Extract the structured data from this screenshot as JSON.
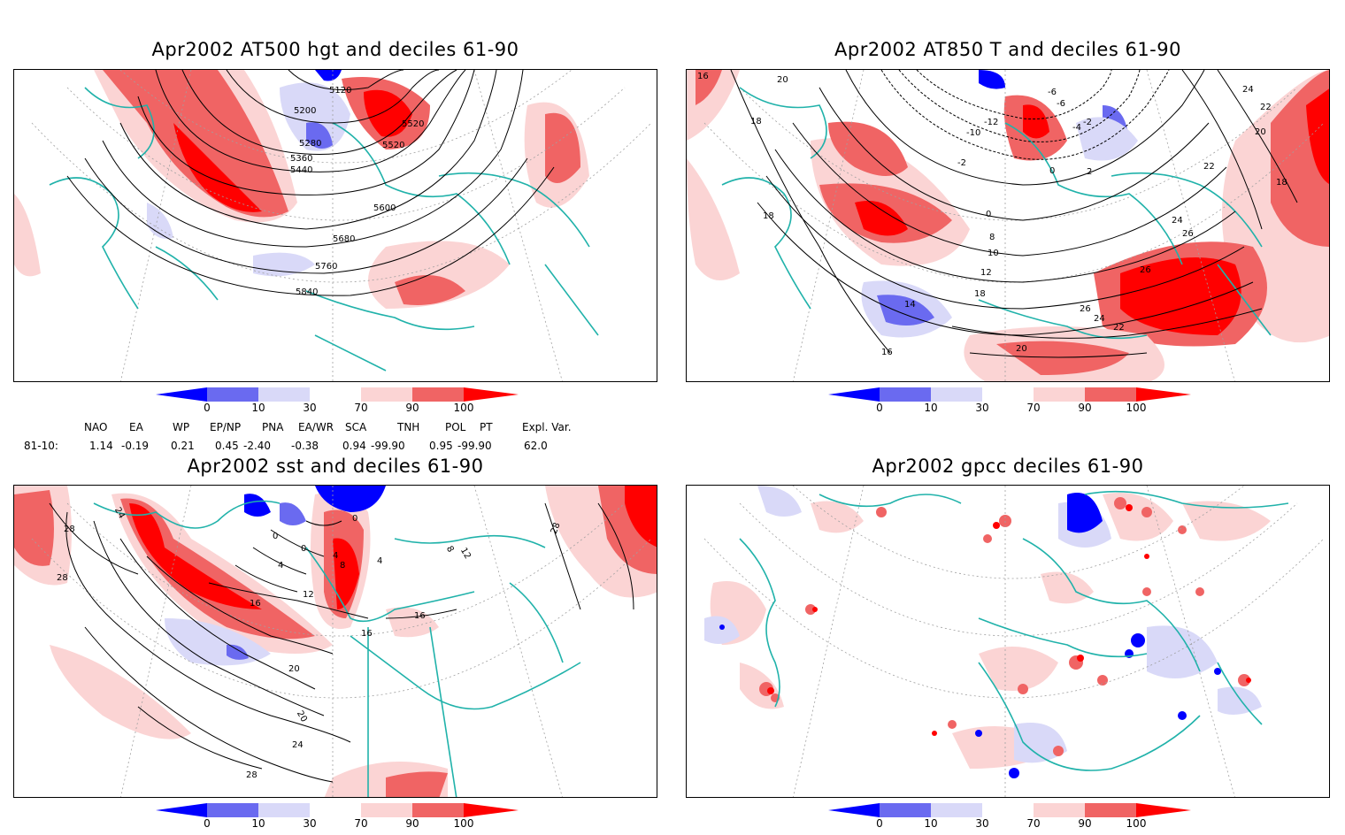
{
  "panels": [
    {
      "title": "Apr2002 AT500 hgt and deciles 61-90",
      "contour_labels": [
        "5120",
        "5200",
        "5280",
        "5360",
        "5440",
        "5520",
        "5520",
        "5600",
        "5680",
        "5760",
        "5840"
      ]
    },
    {
      "title": "Apr2002 AT850 T and deciles 61-90",
      "contour_labels": [
        "16",
        "20",
        "18",
        "18",
        "-6",
        "-6",
        "-2",
        "-4",
        "-12",
        "-10",
        "-2",
        "0",
        "2",
        "24",
        "22",
        "20",
        "22",
        "18",
        "0",
        "8",
        "10",
        "12",
        "14",
        "18",
        "16",
        "24",
        "26",
        "26",
        "26",
        "24",
        "22",
        "20"
      ]
    },
    {
      "title": "Apr2002 sst and deciles 61-90",
      "contour_labels": [
        "24",
        "28",
        "28",
        "0",
        "0",
        "0",
        "4",
        "8",
        "4",
        "4",
        "16",
        "12",
        "16",
        "16",
        "20",
        "20",
        "24",
        "28",
        "8",
        "12",
        "28"
      ]
    },
    {
      "title": "Apr2002 gpcc deciles 61-90",
      "contour_labels": []
    }
  ],
  "colorbar": {
    "ticks": [
      "0",
      "10",
      "30",
      "70",
      "90",
      "100"
    ],
    "colors": [
      "#0000ff",
      "#6a6af0",
      "#d9d9f8",
      "#ffffff",
      "#fbd4d4",
      "#f06464",
      "#ff0000"
    ]
  },
  "indices": {
    "headers": [
      "NAO",
      "EA",
      "WP",
      "EP/NP",
      "PNA",
      "EA/WR",
      "SCA",
      "TNH",
      "POL",
      "PT",
      "Expl. Var."
    ],
    "row_label": "81-10:",
    "values": [
      "1.14",
      "-0.19",
      "0.21",
      "0.45",
      "-2.40",
      "-0.38",
      "0.94",
      "-99.90",
      "0.95",
      "-99.90",
      "62.0"
    ]
  },
  "colors": {
    "coast": "#20b2aa",
    "contour": "#000000",
    "grid": "#a0a0a0"
  }
}
